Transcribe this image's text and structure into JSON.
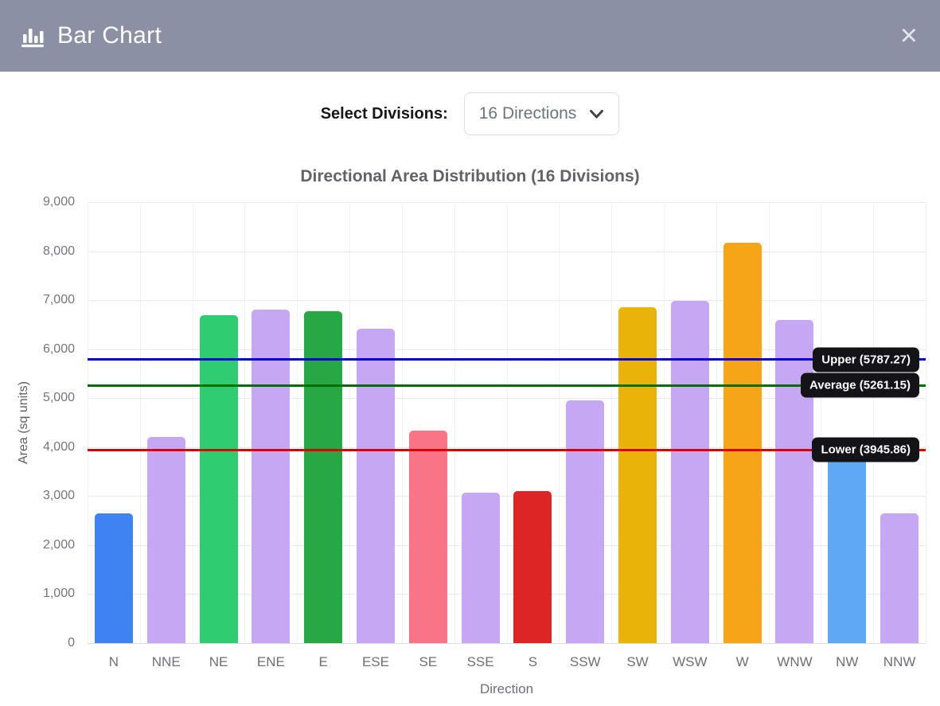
{
  "header": {
    "title": "Bar Chart",
    "close_label": "×"
  },
  "controls": {
    "label": "Select Divisions:",
    "selected": "16 Directions"
  },
  "chart_data": {
    "type": "bar",
    "title": "Directional Area Distribution (16 Divisions)",
    "xlabel": "Direction",
    "ylabel": "Area (sq units)",
    "ylim": [
      0,
      9000
    ],
    "ytick_step": 1000,
    "grid": true,
    "legend": false,
    "categories": [
      "N",
      "NNE",
      "NE",
      "ENE",
      "E",
      "ESE",
      "SE",
      "SSE",
      "S",
      "SSW",
      "SW",
      "WSW",
      "W",
      "WNW",
      "NW",
      "NNW"
    ],
    "values": [
      2650,
      4200,
      6700,
      6800,
      6780,
      6420,
      4330,
      3070,
      3100,
      4950,
      6860,
      6980,
      8170,
      6590,
      3870,
      2650
    ],
    "bar_colors": [
      "#3e83f1",
      "#c6a7f3",
      "#2fcc71",
      "#c6a7f3",
      "#28a745",
      "#c6a7f3",
      "#fa7488",
      "#c6a7f3",
      "#dd2525",
      "#c6a7f3",
      "#eab308",
      "#c6a7f3",
      "#f6a418",
      "#c6a7f3",
      "#5fa8f5",
      "#c6a7f3"
    ],
    "reference_lines": [
      {
        "label": "Upper (5787.27)",
        "value": 5787.27,
        "color": "#0000dd"
      },
      {
        "label": "Average (5261.15)",
        "value": 5261.15,
        "color": "#006f00"
      },
      {
        "label": "Lower (3945.86)",
        "value": 3945.86,
        "color": "#dd0000"
      }
    ]
  }
}
